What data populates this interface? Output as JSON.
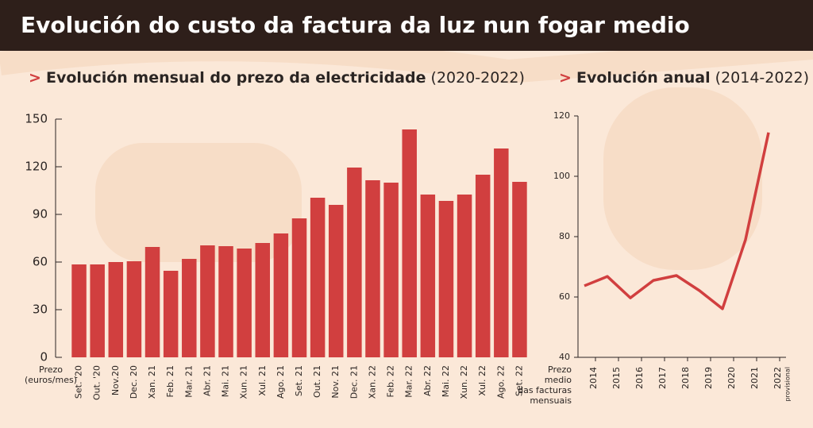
{
  "header": {
    "title": "Evolución do custo da factura da luz nun fogar medio"
  },
  "chart_data": [
    {
      "type": "bar",
      "marker": ">",
      "title": "Evolución mensual do prezo da electricidade",
      "subtitle": "(2020-2022)",
      "y_label": [
        "Prezo",
        "(euros/mes)"
      ],
      "categories": [
        "Set. '20",
        "Out. '20",
        "Nov.20",
        "Dec. 20",
        "Xan. 21",
        "Feb. 21",
        "Mar. 21",
        "Abr. 21",
        "Mai. 21",
        "Xun. 21",
        "Xul. 21",
        "Ago. 21",
        "Set. 21",
        "Out. 21",
        "Nov. 21",
        "Dec. 21",
        "Xan. 22",
        "Feb. 22",
        "Mar. 22",
        "Abr. 22",
        "Mai. 22",
        "Xun. 22",
        "Xul. 22",
        "Ago. 22",
        "Set. 22"
      ],
      "values": [
        58.5,
        58.5,
        60,
        60.5,
        69.5,
        54.5,
        62,
        70.5,
        70,
        68.5,
        72,
        78,
        87.5,
        100.5,
        96,
        119.5,
        111.5,
        110,
        143.5,
        102.5,
        98.5,
        102.5,
        115,
        131.5,
        110.5
      ],
      "color": "#d13f3f",
      "ylim": [
        0,
        150
      ],
      "yticks": [
        0,
        30,
        60,
        90,
        120,
        150
      ]
    },
    {
      "type": "line",
      "marker": ">",
      "title": "Evolución anual",
      "subtitle": "(2014-2022)",
      "y_label": [
        "Prezo",
        "medio",
        "das facturas",
        "mensuais"
      ],
      "categories": [
        "2014",
        "2015",
        "2016",
        "2017",
        "2018",
        "2019",
        "2020",
        "2021",
        "2022"
      ],
      "note": "provisional",
      "values": [
        63.7,
        66.8,
        59.7,
        65.5,
        67.1,
        62.1,
        56.1,
        79,
        114.5
      ],
      "color": "#d13f3f",
      "ylim": [
        40,
        120
      ],
      "yticks": [
        40,
        60,
        80,
        100,
        120
      ]
    }
  ]
}
